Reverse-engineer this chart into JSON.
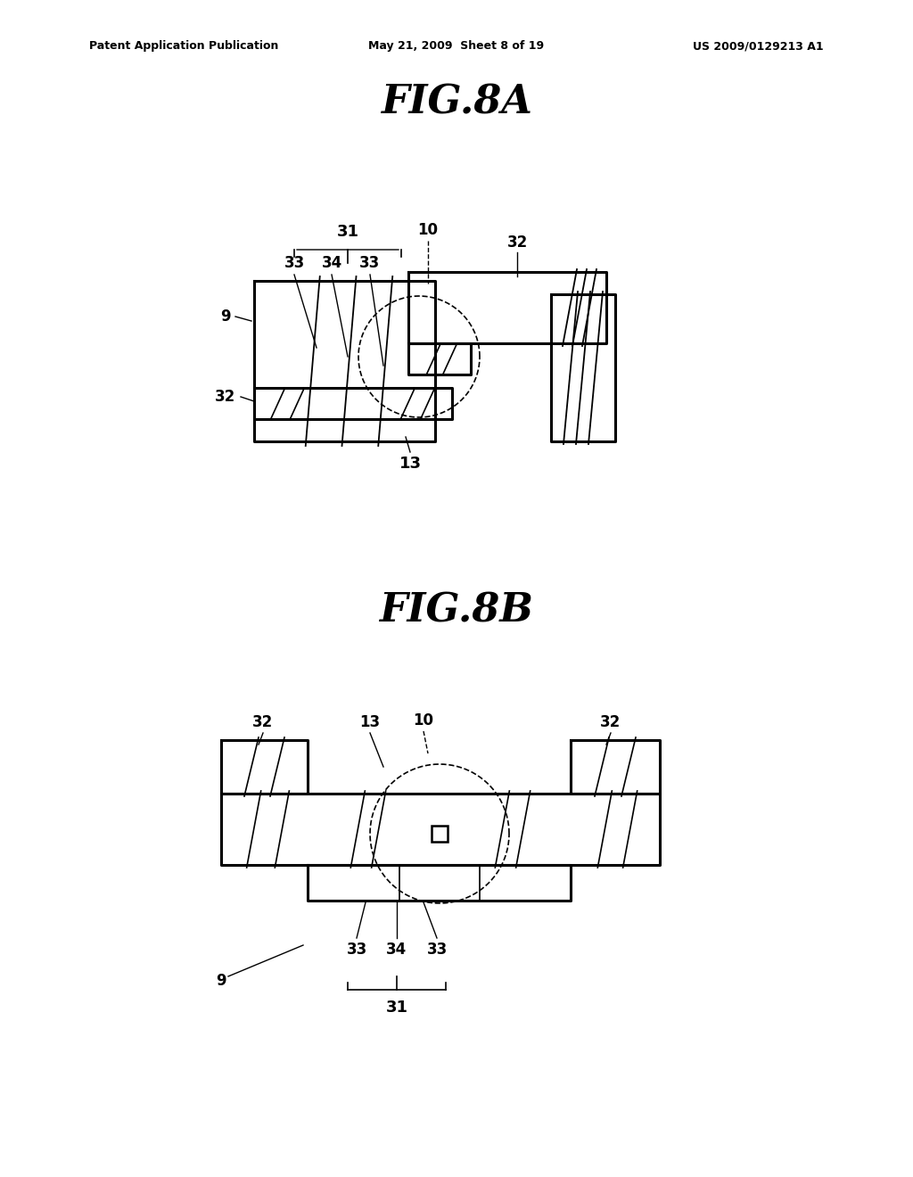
{
  "background_color": "#ffffff",
  "header_left": "Patent Application Publication",
  "header_center": "May 21, 2009  Sheet 8 of 19",
  "header_right": "US 2009/0129213 A1",
  "fig8a_title": "FIG.8A",
  "fig8b_title": "FIG.8B"
}
